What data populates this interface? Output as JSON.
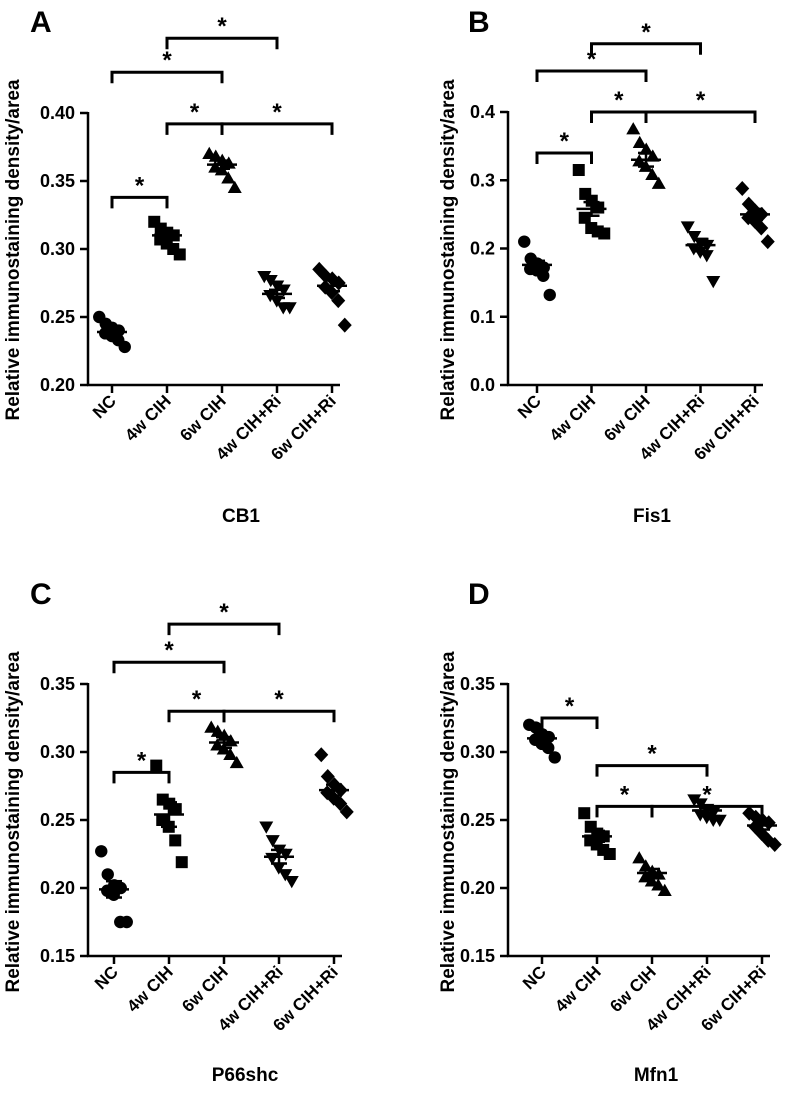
{
  "figure": {
    "panels": [
      {
        "letter": "A",
        "xlabel": "CB1",
        "ylabel": "Relative immunostaining density/area",
        "categories": [
          "NC",
          "4w CIH",
          "6w CIH",
          "4w CIH+Ri",
          "6w CIH+Ri"
        ],
        "ylim": [
          0.2,
          0.4
        ],
        "ticks": [
          "0.20",
          "0.25",
          "0.30",
          "0.35",
          "0.40"
        ],
        "tick_values": [
          0.2,
          0.25,
          0.3,
          0.35,
          0.4
        ],
        "markers": [
          "circle",
          "square",
          "triangle-up",
          "triangle-down",
          "diamond"
        ],
        "means": [
          0.239,
          0.31,
          0.362,
          0.267,
          0.273
        ],
        "sems": [
          0.002,
          0.003,
          0.003,
          0.003,
          0.004
        ],
        "points": [
          [
            0.25,
            0.245,
            0.242,
            0.24,
            0.238,
            0.236,
            0.233,
            0.228
          ],
          [
            0.32,
            0.315,
            0.312,
            0.31,
            0.307,
            0.304,
            0.3,
            0.296
          ],
          [
            0.37,
            0.368,
            0.365,
            0.363,
            0.36,
            0.358,
            0.352,
            0.345
          ],
          [
            0.28,
            0.277,
            0.273,
            0.27,
            0.266,
            0.262,
            0.257,
            0.257
          ],
          [
            0.285,
            0.28,
            0.278,
            0.275,
            0.272,
            0.268,
            0.262,
            0.244
          ]
        ],
        "brackets": [
          {
            "from": 0,
            "to": 1,
            "y": 0.338,
            "label": "*"
          },
          {
            "from": 1,
            "to": 2,
            "y": 0.392,
            "label": "*"
          },
          {
            "from": 2,
            "to": 4,
            "y": 0.392,
            "label": "*"
          },
          {
            "from": 0,
            "to": 2,
            "y": 0.43,
            "label": "*"
          },
          {
            "from": 1,
            "to": 3,
            "y": 0.455,
            "label": "*"
          }
        ]
      },
      {
        "letter": "B",
        "xlabel": "Fis1",
        "ylabel": "Relative immunostaining density/area",
        "categories": [
          "NC",
          "4w CIH",
          "6w CIH",
          "4w CIH+Ri",
          "6w CIH+Ri"
        ],
        "ylim": [
          0.0,
          0.4
        ],
        "ticks": [
          "0.0",
          "0.1",
          "0.2",
          "0.3",
          "0.4"
        ],
        "tick_values": [
          0.0,
          0.1,
          0.2,
          0.3,
          0.4
        ],
        "markers": [
          "circle",
          "square",
          "triangle-up",
          "triangle-down",
          "diamond"
        ],
        "means": [
          0.176,
          0.258,
          0.33,
          0.205,
          0.25
        ],
        "sems": [
          0.006,
          0.01,
          0.01,
          0.009,
          0.008
        ],
        "points": [
          [
            0.21,
            0.185,
            0.178,
            0.172,
            0.17,
            0.168,
            0.16,
            0.132
          ],
          [
            0.315,
            0.28,
            0.27,
            0.26,
            0.245,
            0.23,
            0.225,
            0.222
          ],
          [
            0.375,
            0.355,
            0.345,
            0.335,
            0.328,
            0.32,
            0.308,
            0.295
          ],
          [
            0.232,
            0.218,
            0.208,
            0.205,
            0.2,
            0.195,
            0.19,
            0.152
          ],
          [
            0.288,
            0.265,
            0.255,
            0.25,
            0.245,
            0.24,
            0.23,
            0.21
          ]
        ],
        "brackets": [
          {
            "from": 0,
            "to": 1,
            "y": 0.34,
            "label": "*"
          },
          {
            "from": 1,
            "to": 2,
            "y": 0.4,
            "label": "*"
          },
          {
            "from": 2,
            "to": 4,
            "y": 0.4,
            "label": "*"
          },
          {
            "from": 0,
            "to": 2,
            "y": 0.46,
            "label": "*"
          },
          {
            "from": 1,
            "to": 3,
            "y": 0.5,
            "label": "*"
          }
        ]
      },
      {
        "letter": "C",
        "xlabel": "P66shc",
        "ylabel": "Relative immunostaining density/area",
        "categories": [
          "NC",
          "4w CIH",
          "6w CIH",
          "4w CIH+Ri",
          "6w CIH+Ri"
        ],
        "ylim": [
          0.15,
          0.35
        ],
        "ticks": [
          "0.15",
          "0.20",
          "0.25",
          "0.30",
          "0.35"
        ],
        "tick_values": [
          0.15,
          0.2,
          0.25,
          0.3,
          0.35
        ],
        "markers": [
          "circle",
          "square",
          "triangle-up",
          "triangle-down",
          "diamond"
        ],
        "means": [
          0.199,
          0.254,
          0.307,
          0.223,
          0.272
        ],
        "sems": [
          0.006,
          0.009,
          0.004,
          0.005,
          0.004
        ],
        "points": [
          [
            0.227,
            0.21,
            0.202,
            0.2,
            0.198,
            0.195,
            0.175,
            0.175
          ],
          [
            0.29,
            0.265,
            0.262,
            0.258,
            0.25,
            0.245,
            0.235,
            0.219
          ],
          [
            0.318,
            0.315,
            0.312,
            0.308,
            0.305,
            0.302,
            0.298,
            0.292
          ],
          [
            0.245,
            0.235,
            0.228,
            0.225,
            0.222,
            0.215,
            0.21,
            0.205
          ],
          [
            0.298,
            0.282,
            0.276,
            0.272,
            0.27,
            0.266,
            0.262,
            0.256
          ]
        ],
        "brackets": [
          {
            "from": 0,
            "to": 1,
            "y": 0.285,
            "label": "*"
          },
          {
            "from": 1,
            "to": 2,
            "y": 0.33,
            "label": "*"
          },
          {
            "from": 2,
            "to": 4,
            "y": 0.33,
            "label": "*"
          },
          {
            "from": 0,
            "to": 2,
            "y": 0.366,
            "label": "*"
          },
          {
            "from": 1,
            "to": 3,
            "y": 0.394,
            "label": "*"
          }
        ]
      },
      {
        "letter": "D",
        "xlabel": "Mfn1",
        "ylabel": "Relative immunostaining density/area",
        "categories": [
          "NC",
          "4w CIH",
          "6w CIH",
          "4w CIH+Ri",
          "6w CIH+Ri"
        ],
        "ylim": [
          0.15,
          0.35
        ],
        "ticks": [
          "0.15",
          "0.20",
          "0.25",
          "0.30",
          "0.35"
        ],
        "tick_values": [
          0.15,
          0.2,
          0.25,
          0.3,
          0.35
        ],
        "markers": [
          "circle",
          "square",
          "triangle-up",
          "triangle-down",
          "diamond"
        ],
        "means": [
          0.31,
          0.238,
          0.211,
          0.257,
          0.246
        ],
        "sems": [
          0.003,
          0.004,
          0.003,
          0.002,
          0.003
        ],
        "points": [
          [
            0.32,
            0.318,
            0.313,
            0.311,
            0.309,
            0.306,
            0.303,
            0.296
          ],
          [
            0.255,
            0.245,
            0.24,
            0.238,
            0.235,
            0.232,
            0.228,
            0.225
          ],
          [
            0.222,
            0.216,
            0.212,
            0.21,
            0.208,
            0.205,
            0.202,
            0.198
          ],
          [
            0.265,
            0.262,
            0.258,
            0.256,
            0.254,
            0.252,
            0.25,
            0.25
          ],
          [
            0.255,
            0.252,
            0.25,
            0.248,
            0.245,
            0.24,
            0.235,
            0.232
          ]
        ],
        "brackets": [
          {
            "from": 0,
            "to": 1,
            "y": 0.325,
            "label": "*"
          },
          {
            "from": 1,
            "to": 3,
            "y": 0.29,
            "label": "*"
          },
          {
            "from": 1,
            "to": 2,
            "y": 0.26,
            "label": "*"
          },
          {
            "from": 2,
            "to": 4,
            "y": 0.26,
            "label": "*"
          }
        ]
      }
    ]
  },
  "chart_data": [
    {
      "type": "scatter",
      "panel": "A",
      "title": "",
      "xlabel": "CB1",
      "ylabel": "Relative immunostaining density/area",
      "categories": [
        "NC",
        "4w CIH",
        "6w CIH",
        "4w CIH+Ri",
        "6w CIH+Ri"
      ],
      "ylim": [
        0.2,
        0.4
      ],
      "means": [
        0.239,
        0.31,
        0.362,
        0.267,
        0.273
      ],
      "grid": false
    },
    {
      "type": "scatter",
      "panel": "B",
      "title": "",
      "xlabel": "Fis1",
      "ylabel": "Relative immunostaining density/area",
      "categories": [
        "NC",
        "4w CIH",
        "6w CIH",
        "4w CIH+Ri",
        "6w CIH+Ri"
      ],
      "ylim": [
        0.0,
        0.4
      ],
      "means": [
        0.176,
        0.258,
        0.33,
        0.205,
        0.25
      ],
      "grid": false
    },
    {
      "type": "scatter",
      "panel": "C",
      "title": "",
      "xlabel": "P66shc",
      "ylabel": "Relative immunostaining density/area",
      "categories": [
        "NC",
        "4w CIH",
        "6w CIH",
        "4w CIH+Ri",
        "6w CIH+Ri"
      ],
      "ylim": [
        0.15,
        0.35
      ],
      "means": [
        0.199,
        0.254,
        0.307,
        0.223,
        0.272
      ],
      "grid": false
    },
    {
      "type": "scatter",
      "panel": "D",
      "title": "",
      "xlabel": "Mfn1",
      "ylabel": "Relative immunostaining density/area",
      "categories": [
        "NC",
        "4w CIH",
        "6w CIH",
        "4w CIH+Ri",
        "6w CIH+Ri"
      ],
      "ylim": [
        0.15,
        0.35
      ],
      "means": [
        0.31,
        0.238,
        0.211,
        0.257,
        0.246
      ],
      "grid": false
    }
  ]
}
